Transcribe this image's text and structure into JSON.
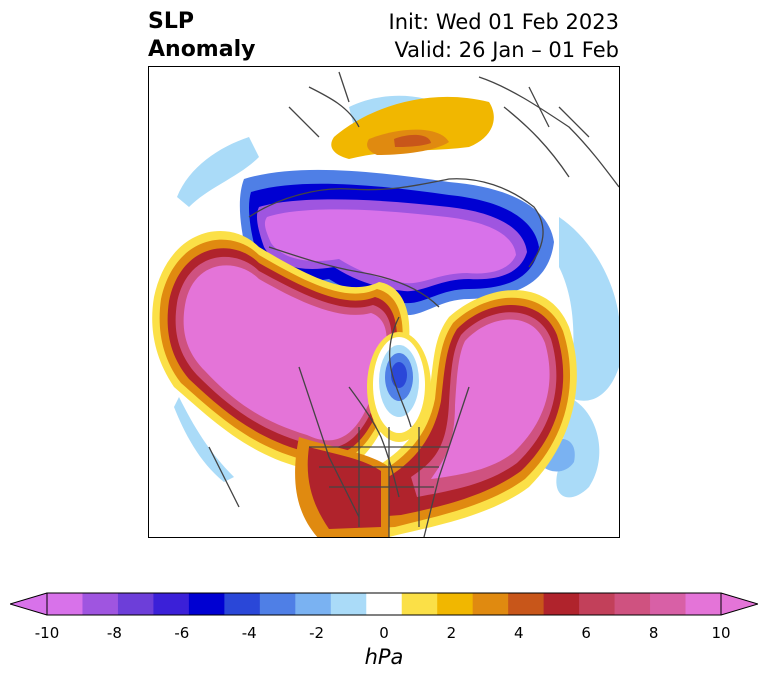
{
  "header": {
    "variable": "SLP",
    "kind": "Anomaly",
    "init": "Init: Wed 01 Feb 2023",
    "valid": "Valid: 26 Jan – 01 Feb"
  },
  "colorbar": {
    "unit": "hPa",
    "ticks": [
      "-10",
      "-8",
      "-6",
      "-4",
      "-2",
      "0",
      "2",
      "4",
      "6",
      "8",
      "10"
    ],
    "levels": [
      -10,
      -9,
      -8,
      -7,
      -6,
      -5,
      -4,
      -3,
      -2,
      -1,
      1,
      2,
      3,
      4,
      5,
      6,
      7,
      8,
      9,
      10
    ],
    "colors": [
      "#d872ea",
      "#9f55e0",
      "#6d3ed9",
      "#3b20d8",
      "#0000d2",
      "#2a47d8",
      "#4f7fe6",
      "#7ab2f2",
      "#aadbf8",
      "#ffffff",
      "#fbe047",
      "#f1b700",
      "#e08a10",
      "#c8561a",
      "#b0232c",
      "#c2405a",
      "#cf5280",
      "#d860a6",
      "#e474d8"
    ],
    "extend": "both"
  }
}
